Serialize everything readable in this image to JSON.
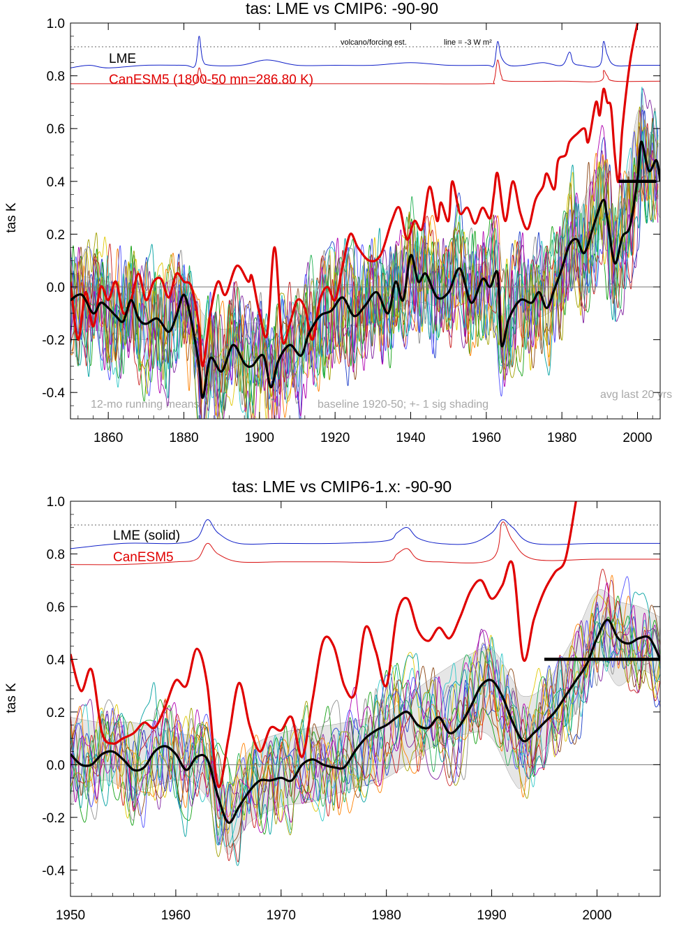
{
  "chart_data": [
    {
      "type": "line",
      "title": "tas: LME vs CMIP6: -90-90",
      "ylabel": "tas K",
      "xlabel": "",
      "xlim": [
        1850,
        2006
      ],
      "ylim": [
        -0.5,
        1.0
      ],
      "xticks": [
        "1860",
        "1880",
        "1900",
        "1920",
        "1940",
        "1960",
        "1980",
        "2000"
      ],
      "yticks": [
        "-0.4",
        "-0.2",
        "0.0",
        "0.2",
        "0.4",
        "0.6",
        "0.8",
        "1.0"
      ],
      "legend": [
        "LME",
        "CanESM5 (1800-50 mn=286.80 K)"
      ],
      "annotations": {
        "forcing": "volcano/forcing est.",
        "forcing_line": "line = -3 W m²",
        "running": "12-mo running means",
        "baseline": "baseline 1920-50; +- 1 sig shading",
        "avg": "avg last 20 yrs"
      },
      "zero_line": true,
      "reference_line": 0.91,
      "avg_last20": {
        "x": [
          1995,
          2005
        ],
        "y": 0.4
      },
      "colors": {
        "lme": "#000000",
        "canesm5": "#e00000",
        "forcing_lme": "#1020c8",
        "forcing_canesm5": "#d81010",
        "ensemble_shading": "#e6e6e6"
      },
      "series": [
        {
          "name": "LME",
          "x": [
            1850,
            1853,
            1856,
            1858,
            1860,
            1862,
            1864,
            1866,
            1868,
            1870,
            1873,
            1876,
            1878,
            1880,
            1882,
            1884,
            1885,
            1887,
            1890,
            1893,
            1896,
            1898,
            1901,
            1903,
            1905,
            1908,
            1911,
            1913,
            1916,
            1919,
            1922,
            1925,
            1928,
            1931,
            1934,
            1936,
            1938,
            1940,
            1942,
            1944,
            1947,
            1950,
            1953,
            1956,
            1959,
            1961,
            1963,
            1964,
            1966,
            1969,
            1972,
            1974,
            1976,
            1978,
            1980,
            1982,
            1984,
            1986,
            1989,
            1991,
            1992,
            1994,
            1996,
            1998,
            2000,
            2001,
            2003,
            2005,
            2006
          ],
          "y": [
            -0.05,
            -0.03,
            -0.1,
            -0.06,
            -0.08,
            -0.11,
            -0.13,
            -0.05,
            -0.12,
            -0.14,
            -0.12,
            -0.17,
            -0.11,
            -0.03,
            -0.13,
            -0.3,
            -0.42,
            -0.27,
            -0.32,
            -0.22,
            -0.29,
            -0.3,
            -0.26,
            -0.38,
            -0.28,
            -0.22,
            -0.26,
            -0.18,
            -0.11,
            -0.09,
            -0.04,
            -0.11,
            -0.07,
            -0.02,
            -0.1,
            0.02,
            -0.05,
            0.12,
            0.02,
            0.05,
            -0.04,
            -0.02,
            0.07,
            -0.06,
            0.03,
            0.0,
            0.05,
            -0.22,
            -0.12,
            -0.05,
            -0.06,
            -0.02,
            -0.08,
            -0.01,
            0.07,
            0.16,
            0.18,
            0.13,
            0.26,
            0.33,
            0.26,
            0.09,
            0.19,
            0.23,
            0.41,
            0.55,
            0.44,
            0.48,
            0.4
          ]
        },
        {
          "name": "CanESM5",
          "x": [
            1850,
            1852,
            1854,
            1856,
            1858,
            1860,
            1862,
            1864,
            1866,
            1868,
            1870,
            1872,
            1874,
            1876,
            1878,
            1880,
            1882,
            1884,
            1885,
            1887,
            1889,
            1891,
            1894,
            1897,
            1898,
            1900,
            1902,
            1904,
            1906,
            1908,
            1910,
            1912,
            1914,
            1916,
            1918,
            1920,
            1922,
            1924,
            1926,
            1929,
            1932,
            1935,
            1937,
            1939,
            1941,
            1943,
            1945,
            1947,
            1948,
            1950,
            1951,
            1953,
            1955,
            1957,
            1959,
            1961,
            1962,
            1963,
            1965,
            1967,
            1969,
            1971,
            1973,
            1975,
            1976,
            1978,
            1979,
            1981,
            1982,
            1984,
            1986,
            1987,
            1989,
            1990,
            1991,
            1992,
            1993,
            1994,
            1995,
            1996,
            1998,
            2000
          ],
          "y": [
            0.02,
            -0.2,
            -0.02,
            -0.15,
            0.0,
            -0.05,
            0.02,
            -0.1,
            -0.05,
            0.05,
            -0.05,
            0.02,
            0.03,
            -0.04,
            0.05,
            0.02,
            0.0,
            -0.15,
            -0.3,
            -0.1,
            0.02,
            -0.03,
            0.08,
            0.02,
            0.04,
            -0.1,
            -0.18,
            0.15,
            -0.2,
            -0.14,
            -0.05,
            -0.08,
            -0.2,
            -0.05,
            0.0,
            -0.05,
            0.08,
            0.2,
            0.15,
            0.1,
            0.12,
            0.25,
            0.3,
            0.18,
            0.25,
            0.22,
            0.38,
            0.25,
            0.32,
            0.25,
            0.4,
            0.28,
            0.3,
            0.24,
            0.3,
            0.26,
            0.35,
            0.43,
            0.25,
            0.4,
            0.28,
            0.22,
            0.33,
            0.38,
            0.43,
            0.37,
            0.48,
            0.5,
            0.55,
            0.58,
            0.6,
            0.55,
            0.7,
            0.65,
            0.75,
            0.7,
            0.68,
            0.5,
            0.4,
            0.6,
            0.85,
            1.0
          ]
        }
      ],
      "forcing": [
        {
          "name": "LME",
          "x": [
            1850,
            1855,
            1860,
            1870,
            1880,
            1883,
            1884,
            1885,
            1887,
            1895,
            1902,
            1910,
            1920,
            1930,
            1940,
            1950,
            1960,
            1962,
            1963,
            1964,
            1966,
            1970,
            1975,
            1980,
            1982,
            1983,
            1985,
            1990,
            1991,
            1992,
            1994,
            2000,
            2006
          ],
          "y": [
            0.83,
            0.84,
            0.83,
            0.84,
            0.84,
            0.84,
            0.95,
            0.86,
            0.84,
            0.84,
            0.86,
            0.84,
            0.84,
            0.84,
            0.85,
            0.84,
            0.84,
            0.84,
            0.93,
            0.87,
            0.84,
            0.84,
            0.85,
            0.84,
            0.89,
            0.85,
            0.84,
            0.84,
            0.93,
            0.88,
            0.84,
            0.84,
            0.84
          ]
        },
        {
          "name": "CanESM5",
          "x": [
            1850,
            1860,
            1870,
            1880,
            1883,
            1884,
            1885,
            1887,
            1900,
            1920,
            1940,
            1960,
            1962,
            1963,
            1964,
            1966,
            1980,
            1990,
            1991,
            1992,
            1994,
            2006
          ],
          "y": [
            0.77,
            0.77,
            0.77,
            0.77,
            0.77,
            0.83,
            0.79,
            0.77,
            0.77,
            0.77,
            0.77,
            0.77,
            0.78,
            0.86,
            0.8,
            0.78,
            0.78,
            0.78,
            0.82,
            0.8,
            0.78,
            0.78
          ]
        }
      ],
      "ensemble_band": {
        "x": [
          1850,
          1860,
          1870,
          1880,
          1885,
          1890,
          1900,
          1905,
          1910,
          1920,
          1930,
          1940,
          1950,
          1960,
          1964,
          1967,
          1970,
          1980,
          1990,
          1993,
          1996,
          2000,
          2003,
          2006
        ],
        "lower": [
          -0.16,
          -0.17,
          -0.2,
          -0.16,
          -0.4,
          -0.33,
          -0.28,
          -0.4,
          -0.3,
          -0.16,
          -0.14,
          -0.06,
          -0.08,
          -0.06,
          -0.28,
          -0.18,
          -0.14,
          -0.06,
          0.18,
          0.02,
          0.1,
          0.32,
          0.34,
          0.26
        ],
        "upper": [
          0.05,
          0.02,
          -0.02,
          0.04,
          -0.1,
          -0.16,
          -0.14,
          -0.26,
          -0.12,
          0.0,
          0.02,
          0.16,
          0.06,
          0.08,
          -0.1,
          -0.04,
          0.04,
          0.12,
          0.46,
          0.2,
          0.28,
          0.66,
          0.58,
          0.54
        ]
      }
    },
    {
      "type": "line",
      "title": "tas: LME vs CMIP6-1.x: -90-90",
      "ylabel": "tas K",
      "xlabel": "",
      "xlim": [
        1950,
        2006
      ],
      "ylim": [
        -0.5,
        1.0
      ],
      "xticks": [
        "1950",
        "1960",
        "1970",
        "1980",
        "1990",
        "2000"
      ],
      "yticks": [
        "-0.4",
        "-0.2",
        "0.0",
        "0.2",
        "0.4",
        "0.6",
        "0.8",
        "1.0"
      ],
      "legend": [
        "LME (solid)",
        "CanESM5"
      ],
      "zero_line": true,
      "reference_line": 0.91,
      "avg_last20": {
        "x": [
          1995,
          2006
        ],
        "y": 0.4
      },
      "colors": {
        "lme": "#000000",
        "canesm5": "#e00000",
        "forcing_lme": "#1020c8",
        "forcing_canesm5": "#d81010",
        "ensemble_shading": "#e6e6e6"
      },
      "series": [
        {
          "name": "LME (solid)",
          "x": [
            1950,
            1951,
            1952,
            1953,
            1954,
            1955,
            1956,
            1957,
            1958,
            1959,
            1960,
            1961,
            1962,
            1963,
            1964,
            1965,
            1966,
            1967,
            1968,
            1969,
            1970,
            1971,
            1972,
            1973,
            1974,
            1975,
            1976,
            1977,
            1978,
            1979,
            1980,
            1981,
            1982,
            1983,
            1984,
            1985,
            1986,
            1987,
            1988,
            1989,
            1990,
            1991,
            1992,
            1993,
            1994,
            1995,
            1996,
            1997,
            1998,
            1999,
            2000,
            2001,
            2002,
            2003,
            2004,
            2005,
            2006
          ],
          "y": [
            0.04,
            0.0,
            0.0,
            0.04,
            0.05,
            0.02,
            -0.02,
            -0.01,
            0.05,
            0.07,
            0.04,
            -0.02,
            0.03,
            0.02,
            -0.12,
            -0.22,
            -0.16,
            -0.1,
            -0.06,
            -0.06,
            -0.05,
            -0.06,
            0.0,
            0.02,
            0.0,
            -0.01,
            -0.01,
            0.05,
            0.1,
            0.13,
            0.15,
            0.18,
            0.2,
            0.15,
            0.14,
            0.18,
            0.12,
            0.15,
            0.22,
            0.3,
            0.32,
            0.26,
            0.16,
            0.09,
            0.12,
            0.16,
            0.2,
            0.26,
            0.32,
            0.38,
            0.48,
            0.55,
            0.48,
            0.46,
            0.48,
            0.48,
            0.4
          ]
        },
        {
          "name": "CanESM5",
          "x": [
            1950,
            1951,
            1952,
            1953,
            1954,
            1955,
            1956,
            1957,
            1958,
            1959,
            1960,
            1961,
            1962,
            1963,
            1964,
            1965,
            1966,
            1967,
            1968,
            1969,
            1970,
            1971,
            1972,
            1973,
            1974,
            1975,
            1976,
            1977,
            1978,
            1979,
            1980,
            1981,
            1982,
            1983,
            1984,
            1985,
            1986,
            1987,
            1988,
            1989,
            1990,
            1991,
            1992,
            1993,
            1994,
            1995,
            1996,
            1997,
            1998
          ],
          "y": [
            0.42,
            0.28,
            0.36,
            0.12,
            0.08,
            0.1,
            0.12,
            0.16,
            0.14,
            0.22,
            0.32,
            0.3,
            0.44,
            0.3,
            -0.08,
            0.1,
            0.31,
            0.15,
            0.05,
            0.14,
            0.13,
            0.18,
            0.03,
            0.25,
            0.47,
            0.45,
            0.3,
            0.27,
            0.52,
            0.43,
            0.3,
            0.57,
            0.63,
            0.51,
            0.47,
            0.52,
            0.48,
            0.56,
            0.66,
            0.7,
            0.63,
            0.68,
            0.76,
            0.4,
            0.55,
            0.66,
            0.73,
            0.78,
            1.0
          ]
        }
      ],
      "forcing": [
        {
          "name": "LME (solid)",
          "x": [
            1950,
            1955,
            1960,
            1962,
            1963,
            1964,
            1966,
            1970,
            1975,
            1980,
            1981,
            1982,
            1983,
            1985,
            1988,
            1990,
            1991,
            1992,
            1994,
            2000,
            2006
          ],
          "y": [
            0.82,
            0.84,
            0.84,
            0.86,
            0.93,
            0.88,
            0.84,
            0.84,
            0.84,
            0.85,
            0.88,
            0.9,
            0.86,
            0.84,
            0.84,
            0.88,
            0.93,
            0.9,
            0.84,
            0.84,
            0.84
          ]
        },
        {
          "name": "CanESM5",
          "x": [
            1950,
            1955,
            1960,
            1962,
            1963,
            1964,
            1966,
            1970,
            1975,
            1980,
            1981,
            1982,
            1983,
            1985,
            1990,
            1991,
            1992,
            1994,
            2000,
            2006
          ],
          "y": [
            0.76,
            0.76,
            0.77,
            0.78,
            0.84,
            0.8,
            0.77,
            0.77,
            0.77,
            0.77,
            0.8,
            0.82,
            0.78,
            0.77,
            0.78,
            0.92,
            0.85,
            0.78,
            0.78,
            0.78
          ]
        }
      ],
      "ensemble_band": {
        "x": [
          1950,
          1953,
          1956,
          1960,
          1962,
          1964,
          1965,
          1967,
          1970,
          1973,
          1976,
          1980,
          1984,
          1988,
          1990,
          1992,
          1993,
          1995,
          1998,
          2000,
          2002,
          2004,
          2006
        ],
        "lower": [
          -0.15,
          -0.06,
          -0.1,
          -0.06,
          -0.08,
          -0.2,
          -0.34,
          -0.22,
          -0.16,
          -0.14,
          -0.1,
          -0.05,
          0.06,
          0.12,
          0.1,
          -0.06,
          -0.08,
          0.06,
          0.2,
          0.4,
          0.3,
          0.36,
          0.32
        ],
        "upper": [
          0.18,
          0.16,
          0.16,
          0.12,
          0.1,
          0.0,
          -0.1,
          0.06,
          0.12,
          0.14,
          0.16,
          0.2,
          0.32,
          0.42,
          0.44,
          0.32,
          0.26,
          0.3,
          0.5,
          0.66,
          0.62,
          0.6,
          0.56
        ]
      }
    }
  ]
}
